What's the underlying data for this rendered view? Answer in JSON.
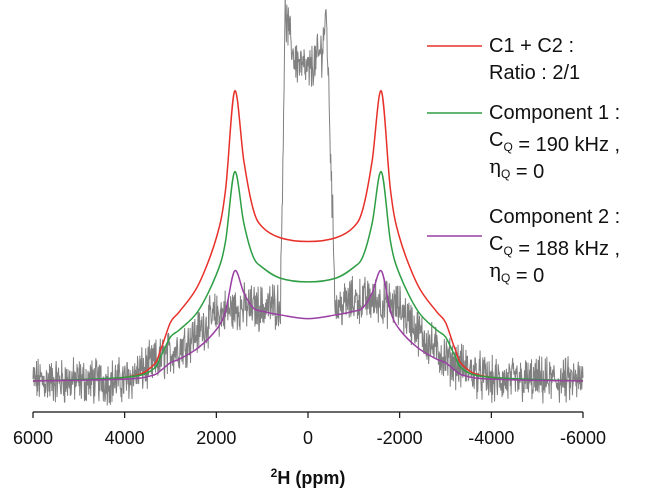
{
  "chart_data": {
    "type": "line",
    "title": "",
    "xlabel_sup": "2",
    "xlabel": "H (ppm)",
    "xlim": [
      6000,
      -6000
    ],
    "x_reversed": true,
    "x_ticks": [
      6000,
      4000,
      2000,
      0,
      -2000,
      -4000,
      -6000
    ],
    "x_tick_labels": [
      "6000",
      "4000",
      "2000",
      "0",
      "-2000",
      "-4000",
      "-6000"
    ],
    "y_axis_shown": false,
    "ylim": [
      0,
      1.0
    ],
    "grid": false,
    "legend_position": "right",
    "series": [
      {
        "id": "experimental",
        "color": "#808080",
        "kind": "noisy-spectrum",
        "baseline": 0,
        "noise_amplitude": 0.05,
        "x": [
          6000,
          4000,
          3200,
          2700,
          2000,
          1500,
          1000,
          600,
          500,
          300,
          0,
          -300,
          -400,
          -600,
          -1000,
          -1500,
          -2000,
          -2500,
          -3000,
          -4000,
          -6000
        ],
        "y": [
          0,
          0,
          0.06,
          0.1,
          0.18,
          0.2,
          0.2,
          0.21,
          1.0,
          0.88,
          0.84,
          0.9,
          1.0,
          0.2,
          0.22,
          0.22,
          0.2,
          0.12,
          0.06,
          0,
          0
        ]
      },
      {
        "id": "c1c2",
        "color": "#e8302a",
        "legend_lines": [
          "C1 + C2 :",
          "Ratio : 2/1"
        ],
        "x": [
          6000,
          4000,
          3400,
          3200,
          3000,
          2800,
          2400,
          2000,
          1800,
          1600,
          1400,
          1200,
          1000,
          600,
          0,
          -600,
          -1000,
          -1200,
          -1400,
          -1600,
          -1800,
          -2000,
          -2400,
          -2800,
          -3000,
          -3200,
          -3400,
          -4000,
          -6000
        ],
        "y": [
          0,
          0.01,
          0.04,
          0.09,
          0.16,
          0.19,
          0.26,
          0.39,
          0.52,
          0.79,
          0.6,
          0.47,
          0.42,
          0.39,
          0.38,
          0.39,
          0.42,
          0.47,
          0.6,
          0.79,
          0.52,
          0.39,
          0.26,
          0.19,
          0.16,
          0.09,
          0.04,
          0.01,
          0
        ]
      },
      {
        "id": "component1",
        "color": "#2e9e44",
        "legend_lines": [
          "Component 1 :",
          "C|Q| = 190 kHz ,",
          "η|Q| = 0"
        ],
        "x": [
          6000,
          4000,
          3400,
          3200,
          3000,
          2800,
          2400,
          2000,
          1800,
          1600,
          1400,
          1200,
          1000,
          600,
          0,
          -600,
          -1000,
          -1200,
          -1400,
          -1600,
          -1800,
          -2000,
          -2400,
          -2800,
          -3000,
          -3200,
          -3400,
          -4000,
          -6000
        ],
        "y": [
          0,
          0.01,
          0.03,
          0.07,
          0.12,
          0.14,
          0.19,
          0.29,
          0.38,
          0.57,
          0.43,
          0.34,
          0.31,
          0.28,
          0.27,
          0.28,
          0.31,
          0.34,
          0.43,
          0.57,
          0.38,
          0.29,
          0.19,
          0.14,
          0.12,
          0.07,
          0.03,
          0.01,
          0
        ]
      },
      {
        "id": "component2",
        "color": "#9a3fa3",
        "legend_lines": [
          "Component 2 :",
          "C|Q| = 188 kHz ,",
          "η|Q| = 0"
        ],
        "x": [
          6000,
          4000,
          3400,
          3200,
          3000,
          2800,
          2400,
          2000,
          1800,
          1600,
          1400,
          1200,
          1000,
          600,
          0,
          -600,
          -1000,
          -1200,
          -1400,
          -1600,
          -1800,
          -2000,
          -2400,
          -2800,
          -3000,
          -3200,
          -3400,
          -4000,
          -6000
        ],
        "y": [
          0,
          0.005,
          0.015,
          0.03,
          0.05,
          0.06,
          0.09,
          0.14,
          0.19,
          0.3,
          0.24,
          0.2,
          0.19,
          0.18,
          0.17,
          0.18,
          0.19,
          0.2,
          0.24,
          0.3,
          0.19,
          0.14,
          0.09,
          0.06,
          0.05,
          0.03,
          0.015,
          0.005,
          0
        ]
      }
    ]
  }
}
